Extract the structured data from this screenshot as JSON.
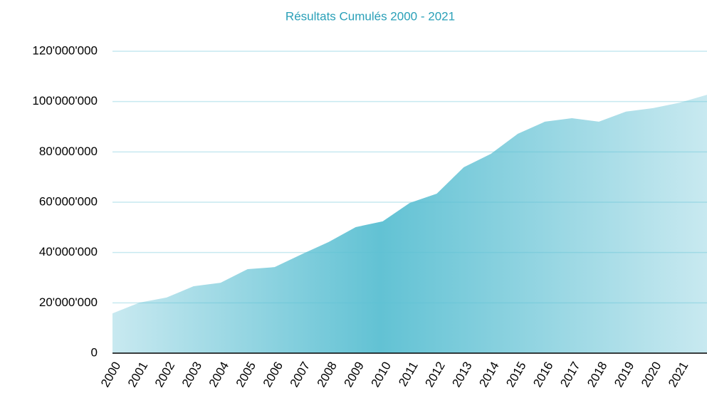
{
  "chart_data": {
    "type": "area",
    "title": "Résultats Cumulés 2000 - 2021",
    "categories": [
      "2000",
      "2001",
      "2002",
      "2003",
      "2004",
      "2005",
      "2006",
      "2007",
      "2008",
      "2009",
      "2010",
      "2011",
      "2012",
      "2013",
      "2014",
      "2015",
      "2016",
      "2017",
      "2018",
      "2019",
      "2020",
      "2021",
      null
    ],
    "values": [
      15800000,
      20100000,
      22100000,
      26600000,
      28000000,
      33400000,
      34200000,
      39300000,
      44200000,
      50100000,
      52400000,
      59700000,
      63400000,
      73900000,
      79200000,
      87200000,
      92000000,
      93400000,
      92000000,
      96000000,
      97400000,
      99600000,
      102700000
    ],
    "color": "#62c2d4",
    "ylim": [
      0,
      120000000
    ],
    "yticks": [
      0,
      {
        "value": 20000000,
        "label": "20'000'000"
      },
      {
        "value": 40000000,
        "label": "40'000'000"
      },
      {
        "value": 60000000,
        "label": "60'000'000"
      },
      {
        "value": 80000000,
        "label": "80'000'000"
      },
      {
        "value": 100000000,
        "label": "100'000'000"
      },
      {
        "value": 120000000,
        "label": "120'000'000"
      }
    ],
    "grid": true
  }
}
